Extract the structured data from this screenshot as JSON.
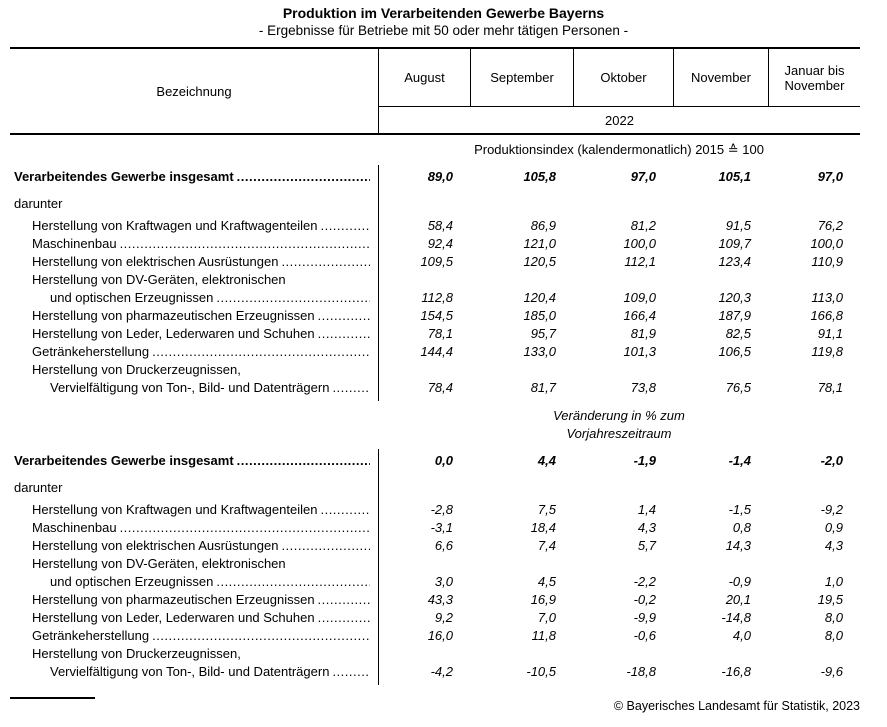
{
  "title": "Produktion im Verarbeitenden Gewerbe Bayerns",
  "subtitle": "- Ergebnisse für Betriebe mit 50 oder mehr tätigen Personen -",
  "header": {
    "label_column": "Bezeichnung",
    "month_columns": [
      "August",
      "September",
      "Oktober",
      "November",
      "Januar bis November"
    ],
    "year": "2022"
  },
  "sections": [
    {
      "caption_lines": [
        "Produktionsindex (kalendermonatlich) 2015 ≙ 100"
      ],
      "caption_italic": false,
      "total": {
        "label": "Verarbeitendes Gewerbe insgesamt",
        "values": [
          "89,0",
          "105,8",
          "97,0",
          "105,1",
          "97,0"
        ]
      },
      "group_label": "darunter",
      "rows": [
        {
          "lines": [
            "Herstellung von Kraftwagen und Kraftwagenteilen"
          ],
          "values": [
            "58,4",
            "86,9",
            "81,2",
            "91,5",
            "76,2"
          ]
        },
        {
          "lines": [
            "Maschinenbau"
          ],
          "values": [
            "92,4",
            "121,0",
            "100,0",
            "109,7",
            "100,0"
          ]
        },
        {
          "lines": [
            "Herstellung von elektrischen Ausrüstungen"
          ],
          "values": [
            "109,5",
            "120,5",
            "112,1",
            "123,4",
            "110,9"
          ]
        },
        {
          "lines": [
            "Herstellung von DV-Geräten, elektronischen",
            "und optischen Erzeugnissen"
          ],
          "values": [
            "112,8",
            "120,4",
            "109,0",
            "120,3",
            "113,0"
          ]
        },
        {
          "lines": [
            "Herstellung von pharmazeutischen Erzeugnissen"
          ],
          "values": [
            "154,5",
            "185,0",
            "166,4",
            "187,9",
            "166,8"
          ]
        },
        {
          "lines": [
            "Herstellung von Leder, Lederwaren und Schuhen"
          ],
          "values": [
            "78,1",
            "95,7",
            "81,9",
            "82,5",
            "91,1"
          ]
        },
        {
          "lines": [
            "Getränkeherstellung"
          ],
          "values": [
            "144,4",
            "133,0",
            "101,3",
            "106,5",
            "119,8"
          ]
        },
        {
          "lines": [
            "Herstellung von Druckerzeugnissen,",
            "Vervielfältigung von Ton-, Bild- und Datenträgern"
          ],
          "values": [
            "78,4",
            "81,7",
            "73,8",
            "76,5",
            "78,1"
          ]
        }
      ]
    },
    {
      "caption_lines": [
        "Veränderung in % zum",
        "Vorjahreszeitraum"
      ],
      "caption_italic": true,
      "total": {
        "label": "Verarbeitendes Gewerbe insgesamt",
        "values": [
          "0,0",
          "4,4",
          "-1,9",
          "-1,4",
          "-2,0"
        ]
      },
      "group_label": "darunter",
      "rows": [
        {
          "lines": [
            "Herstellung von Kraftwagen und Kraftwagenteilen"
          ],
          "values": [
            "-2,8",
            "7,5",
            "1,4",
            "-1,5",
            "-9,2"
          ]
        },
        {
          "lines": [
            "Maschinenbau"
          ],
          "values": [
            "-3,1",
            "18,4",
            "4,3",
            "0,8",
            "0,9"
          ]
        },
        {
          "lines": [
            "Herstellung von elektrischen Ausrüstungen"
          ],
          "values": [
            "6,6",
            "7,4",
            "5,7",
            "14,3",
            "4,3"
          ]
        },
        {
          "lines": [
            "Herstellung von DV-Geräten, elektronischen",
            "und optischen Erzeugnissen"
          ],
          "values": [
            "3,0",
            "4,5",
            "-2,2",
            "-0,9",
            "1,0"
          ]
        },
        {
          "lines": [
            "Herstellung von pharmazeutischen Erzeugnissen"
          ],
          "values": [
            "43,3",
            "16,9",
            "-0,2",
            "20,1",
            "19,5"
          ]
        },
        {
          "lines": [
            "Herstellung von Leder, Lederwaren und Schuhen"
          ],
          "values": [
            "9,2",
            "7,0",
            "-9,9",
            "-14,8",
            "8,0"
          ]
        },
        {
          "lines": [
            "Getränkeherstellung"
          ],
          "values": [
            "16,0",
            "11,8",
            "-0,6",
            "4,0",
            "8,0"
          ]
        },
        {
          "lines": [
            "Herstellung von Druckerzeugnissen,",
            "Vervielfältigung von Ton-, Bild- und Datenträgern"
          ],
          "values": [
            "-4,2",
            "-10,5",
            "-18,8",
            "-16,8",
            "-9,6"
          ]
        }
      ]
    }
  ],
  "footer": {
    "copyright": "© Bayerisches Landesamt für Statistik, 2023"
  }
}
